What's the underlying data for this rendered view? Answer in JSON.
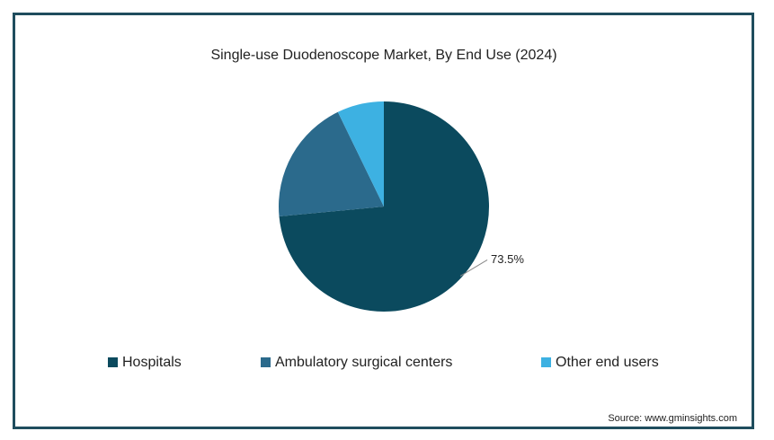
{
  "chart_data": {
    "type": "pie",
    "title": "Single-use Duodenoscope Market, By End Use (2024)",
    "categories": [
      "Hospitals",
      "Ambulatory surgical centers",
      "Other end users"
    ],
    "values": [
      73.5,
      19.3,
      7.2
    ],
    "value_labels": [
      "73.5%",
      null,
      null
    ],
    "colors": [
      "#0b4a5e",
      "#2b6a8c",
      "#3db1e2"
    ],
    "legend": "bottom",
    "source": "Source: www.gminsights.com"
  }
}
